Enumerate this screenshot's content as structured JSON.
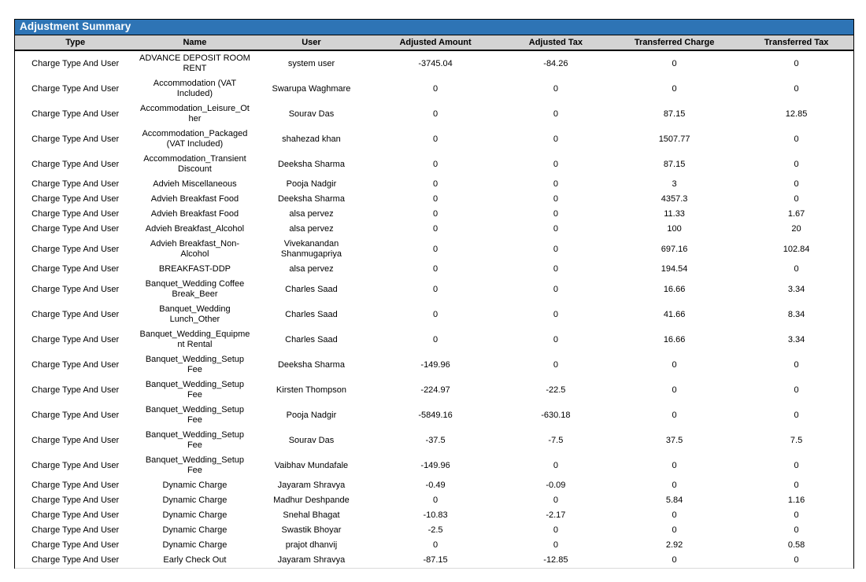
{
  "report": {
    "title": "Adjustment Summary",
    "columns": [
      "Type",
      "Name",
      "User",
      "Adjusted Amount",
      "Adjusted Tax",
      "Transferred Charge",
      "Transferred Tax"
    ],
    "rows": [
      {
        "type": "Charge Type And User",
        "name": "ADVANCE DEPOSIT ROOM RENT",
        "user": "system user",
        "adjusted_amount": "-3745.04",
        "adjusted_tax": "-84.26",
        "transferred_charge": "0",
        "transferred_tax": "0"
      },
      {
        "type": "Charge Type And User",
        "name": "Accommodation (VAT Included)",
        "user": "Swarupa Waghmare",
        "adjusted_amount": "0",
        "adjusted_tax": "0",
        "transferred_charge": "0",
        "transferred_tax": "0"
      },
      {
        "type": "Charge Type And User",
        "name": "Accommodation_Leisure_Other",
        "user": "Sourav Das",
        "adjusted_amount": "0",
        "adjusted_tax": "0",
        "transferred_charge": "87.15",
        "transferred_tax": "12.85"
      },
      {
        "type": "Charge Type And User",
        "name": "Accommodation_Packaged (VAT Included)",
        "user": "shahezad khan",
        "adjusted_amount": "0",
        "adjusted_tax": "0",
        "transferred_charge": "1507.77",
        "transferred_tax": "0"
      },
      {
        "type": "Charge Type And User",
        "name": "Accommodation_Transient Discount",
        "user": "Deeksha Sharma",
        "adjusted_amount": "0",
        "adjusted_tax": "0",
        "transferred_charge": "87.15",
        "transferred_tax": "0"
      },
      {
        "type": "Charge Type And User",
        "name": "Advieh  Miscellaneous",
        "user": "Pooja Nadgir",
        "adjusted_amount": "0",
        "adjusted_tax": "0",
        "transferred_charge": "3",
        "transferred_tax": "0"
      },
      {
        "type": "Charge Type And User",
        "name": "Advieh Breakfast Food",
        "user": "Deeksha Sharma",
        "adjusted_amount": "0",
        "adjusted_tax": "0",
        "transferred_charge": "4357.3",
        "transferred_tax": "0"
      },
      {
        "type": "Charge Type And User",
        "name": "Advieh Breakfast Food",
        "user": "alsa pervez",
        "adjusted_amount": "0",
        "adjusted_tax": "0",
        "transferred_charge": "11.33",
        "transferred_tax": "1.67"
      },
      {
        "type": "Charge Type And User",
        "name": "Advieh Breakfast_Alcohol",
        "user": "alsa pervez",
        "adjusted_amount": "0",
        "adjusted_tax": "0",
        "transferred_charge": "100",
        "transferred_tax": "20"
      },
      {
        "type": "Charge Type And User",
        "name": "Advieh Breakfast_Non-Alcohol",
        "user": "Vivekanandan Shanmugapriya",
        "adjusted_amount": "0",
        "adjusted_tax": "0",
        "transferred_charge": "697.16",
        "transferred_tax": "102.84"
      },
      {
        "type": "Charge Type And User",
        "name": "BREAKFAST-DDP",
        "user": "alsa pervez",
        "adjusted_amount": "0",
        "adjusted_tax": "0",
        "transferred_charge": "194.54",
        "transferred_tax": "0"
      },
      {
        "type": "Charge Type And User",
        "name": "Banquet_Wedding Coffee Break_Beer",
        "user": "Charles Saad",
        "adjusted_amount": "0",
        "adjusted_tax": "0",
        "transferred_charge": "16.66",
        "transferred_tax": "3.34"
      },
      {
        "type": "Charge Type And User",
        "name": "Banquet_Wedding Lunch_Other",
        "user": "Charles Saad",
        "adjusted_amount": "0",
        "adjusted_tax": "0",
        "transferred_charge": "41.66",
        "transferred_tax": "8.34"
      },
      {
        "type": "Charge Type And User",
        "name": "Banquet_Wedding_Equipment Rental",
        "user": "Charles Saad",
        "adjusted_amount": "0",
        "adjusted_tax": "0",
        "transferred_charge": "16.66",
        "transferred_tax": "3.34"
      },
      {
        "type": "Charge Type And User",
        "name": "Banquet_Wedding_Setup Fee",
        "user": "Deeksha Sharma",
        "adjusted_amount": "-149.96",
        "adjusted_tax": "0",
        "transferred_charge": "0",
        "transferred_tax": "0"
      },
      {
        "type": "Charge Type And User",
        "name": "Banquet_Wedding_Setup Fee",
        "user": "Kirsten Thompson",
        "adjusted_amount": "-224.97",
        "adjusted_tax": "-22.5",
        "transferred_charge": "0",
        "transferred_tax": "0"
      },
      {
        "type": "Charge Type And User",
        "name": "Banquet_Wedding_Setup Fee",
        "user": "Pooja Nadgir",
        "adjusted_amount": "-5849.16",
        "adjusted_tax": "-630.18",
        "transferred_charge": "0",
        "transferred_tax": "0"
      },
      {
        "type": "Charge Type And User",
        "name": "Banquet_Wedding_Setup Fee",
        "user": "Sourav Das",
        "adjusted_amount": "-37.5",
        "adjusted_tax": "-7.5",
        "transferred_charge": "37.5",
        "transferred_tax": "7.5"
      },
      {
        "type": "Charge Type And User",
        "name": "Banquet_Wedding_Setup Fee",
        "user": "Vaibhav Mundafale",
        "adjusted_amount": "-149.96",
        "adjusted_tax": "0",
        "transferred_charge": "0",
        "transferred_tax": "0"
      },
      {
        "type": "Charge Type And User",
        "name": "Dynamic Charge",
        "user": "Jayaram Shravya",
        "adjusted_amount": "-0.49",
        "adjusted_tax": "-0.09",
        "transferred_charge": "0",
        "transferred_tax": "0"
      },
      {
        "type": "Charge Type And User",
        "name": "Dynamic Charge",
        "user": "Madhur Deshpande",
        "adjusted_amount": "0",
        "adjusted_tax": "0",
        "transferred_charge": "5.84",
        "transferred_tax": "1.16"
      },
      {
        "type": "Charge Type And User",
        "name": "Dynamic Charge",
        "user": "Snehal Bhagat",
        "adjusted_amount": "-10.83",
        "adjusted_tax": "-2.17",
        "transferred_charge": "0",
        "transferred_tax": "0"
      },
      {
        "type": "Charge Type And User",
        "name": "Dynamic Charge",
        "user": "Swastik Bhoyar",
        "adjusted_amount": "-2.5",
        "adjusted_tax": "0",
        "transferred_charge": "0",
        "transferred_tax": "0"
      },
      {
        "type": "Charge Type And User",
        "name": "Dynamic Charge",
        "user": "prajot dhanvij",
        "adjusted_amount": "0",
        "adjusted_tax": "0",
        "transferred_charge": "2.92",
        "transferred_tax": "0.58"
      },
      {
        "type": "Charge Type And User",
        "name": "Early Check Out",
        "user": "Jayaram Shravya",
        "adjusted_amount": "-87.15",
        "adjusted_tax": "-12.85",
        "transferred_charge": "0",
        "transferred_tax": "0"
      }
    ]
  },
  "colors": {
    "title_bar_bg": "#2E74B5",
    "title_text": "#FFFFFF",
    "column_header_bg": "#D3D3D3",
    "border": "#000000",
    "row_text": "#000000",
    "page_bg": "#FFFFFF"
  }
}
